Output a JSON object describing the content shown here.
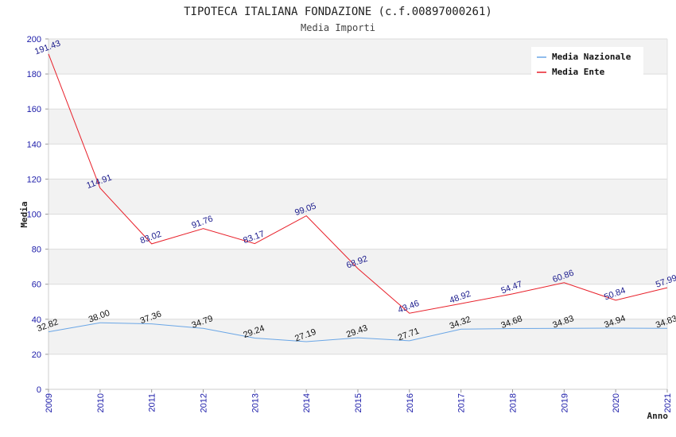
{
  "chart_data": {
    "type": "line",
    "title": "TIPOTECA ITALIANA FONDAZIONE (c.f.00897000261)",
    "subtitle": "Media Importi",
    "xlabel": "Anno",
    "ylabel": "Media",
    "x": [
      "2009",
      "2010",
      "2011",
      "2012",
      "2013",
      "2014",
      "2015",
      "2016",
      "2017",
      "2018",
      "2019",
      "2020",
      "2021"
    ],
    "ylim": [
      0,
      200
    ],
    "yticks": [
      "0",
      "20",
      "40",
      "60",
      "80",
      "100",
      "120",
      "140",
      "160",
      "180",
      "200"
    ],
    "grid": true,
    "legend_position": "top-right",
    "series": [
      {
        "name": "Media Nazionale",
        "color": "#6aa6e6",
        "values": [
          32.82,
          38.0,
          37.36,
          34.79,
          29.24,
          27.19,
          29.43,
          27.71,
          34.32,
          34.68,
          34.83,
          34.94,
          34.83
        ],
        "labels": [
          "32.82",
          "38.00",
          "37.36",
          "34.79",
          "29.24",
          "27.19",
          "29.43",
          "27.71",
          "34.32",
          "34.68",
          "34.83",
          "34.94",
          "34.83"
        ]
      },
      {
        "name": "Media Ente",
        "color": "#e8202a",
        "values": [
          191.43,
          114.91,
          83.02,
          91.76,
          83.17,
          99.05,
          68.92,
          43.46,
          48.92,
          54.47,
          60.86,
          50.84,
          57.99
        ],
        "labels": [
          "191.43",
          "114.91",
          "83.02",
          "91.76",
          "83.17",
          "99.05",
          "68.92",
          "43.46",
          "48.92",
          "54.47",
          "60.86",
          "50.84",
          "57.99"
        ]
      }
    ]
  }
}
